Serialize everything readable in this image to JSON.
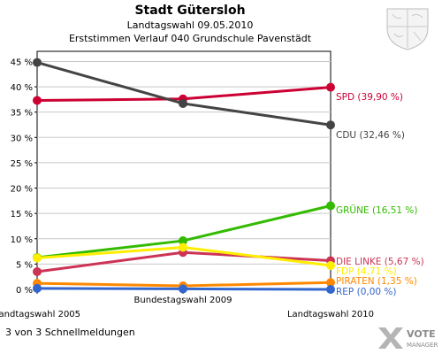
{
  "header": {
    "title": "Stadt Gütersloh",
    "subtitle": "Landtagswahl 09.05.2010",
    "subtitle2": "Erststimmen Verlauf 040 Grundschule Pavenstädt"
  },
  "footer": {
    "text": "3 von 3 Schnellmeldungen"
  },
  "logo": {
    "line1": "VOTE",
    "line2": "MANAGER"
  },
  "chart_data": {
    "type": "line",
    "title": "Stadt Gütersloh",
    "categories": [
      "Landtagswahl 2005",
      "Bundestagswahl 2009",
      "Landtagswahl 2010"
    ],
    "ylim": [
      0,
      47
    ],
    "yticks": [
      0,
      5,
      10,
      15,
      20,
      25,
      30,
      35,
      40,
      45
    ],
    "ytick_labels": [
      "0 %",
      "5 %",
      "10 %",
      "15 %",
      "20 %",
      "25 %",
      "30 %",
      "35 %",
      "40 %",
      "45 %"
    ],
    "grid": true,
    "series": [
      {
        "name": "SPD",
        "label": "SPD (39,90 %)",
        "color": "#cc0033",
        "values": [
          37.3,
          37.6,
          39.9
        ]
      },
      {
        "name": "CDU",
        "label": "CDU (32,46 %)",
        "color": "#444444",
        "values": [
          44.8,
          36.7,
          32.46
        ]
      },
      {
        "name": "GRÜNE",
        "label": "GRÜNE (16,51 %)",
        "color": "#33bb00",
        "values": [
          6.3,
          9.6,
          16.51
        ]
      },
      {
        "name": "DIE LINKE",
        "label": "DIE LINKE (5,67 %)",
        "color": "#cc3355",
        "values": [
          3.5,
          7.3,
          5.67
        ]
      },
      {
        "name": "FDP",
        "label": "FDP (4,71 %)",
        "color": "#ffee00",
        "values": [
          6.2,
          8.3,
          4.71
        ]
      },
      {
        "name": "PIRATEN",
        "label": "PIRATEN (1,35 %)",
        "color": "#ff8800",
        "values": [
          1.2,
          0.7,
          1.35
        ]
      },
      {
        "name": "REP",
        "label": "REP (0,00 %)",
        "color": "#3366cc",
        "values": [
          0.2,
          0.1,
          0.0
        ]
      }
    ]
  }
}
